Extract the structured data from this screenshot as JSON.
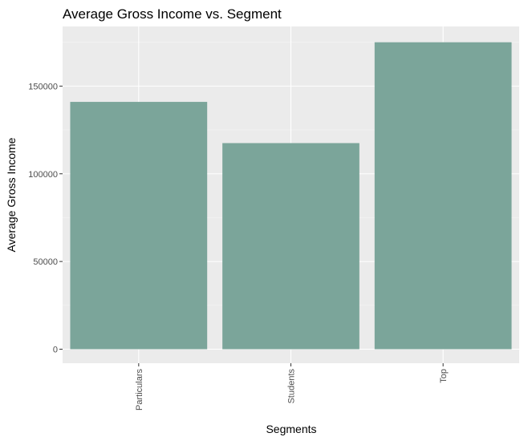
{
  "chart_data": {
    "type": "bar",
    "title": "Average Gross Income vs. Segment",
    "xlabel": "Segments",
    "ylabel": "Average Gross Income",
    "categories": [
      "Particulars",
      "Students",
      "Top"
    ],
    "values": [
      141000,
      117500,
      175000
    ],
    "ylim": [
      -8000,
      184000
    ],
    "yticks": [
      0,
      50000,
      100000,
      150000
    ],
    "ytick_labels": [
      "0",
      "50000",
      "100000",
      "150000"
    ],
    "grid": true,
    "legend": "none",
    "colors": {
      "bar": "#7BA59A",
      "panel": "#EBEBEB",
      "grid_major": "#FFFFFF",
      "grid_minor": "#F5F5F5"
    }
  }
}
